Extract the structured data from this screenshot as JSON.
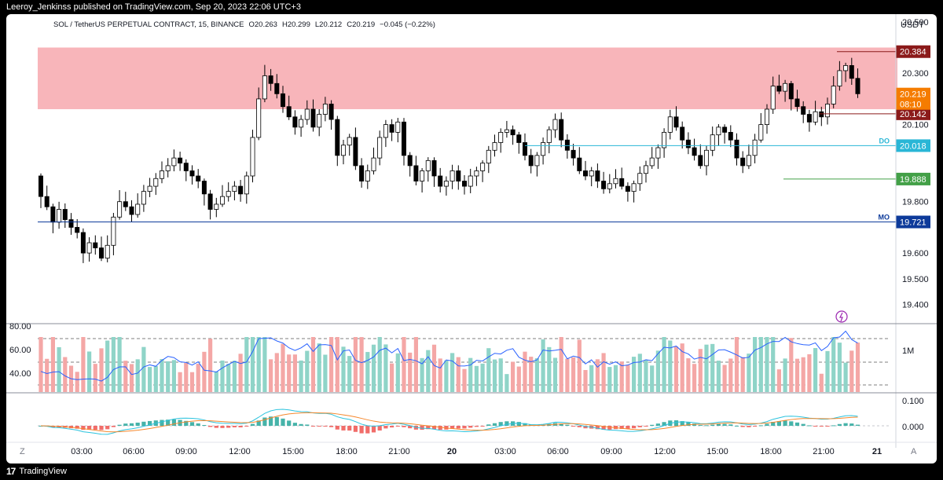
{
  "header": {
    "published": "Leeroy_Jenkinss published on TradingView.com, Sep 20, 2023 22:06 UTC+3"
  },
  "legend": {
    "symbol": "SOL / TetherUS PERPETUAL CONTRACT, 15, BINANCE",
    "o": "O20.263",
    "h": "H20.299",
    "l": "L20.212",
    "c": "C20.219",
    "chg": "−0.045 (−0.22%)"
  },
  "footer": {
    "brand": "TradingView",
    "z_button": "Z",
    "a_button": "A"
  },
  "colors": {
    "up": "#ffffff",
    "down": "#000000",
    "zone": "#f7a8ae",
    "rsi": "#2962ff",
    "macd": "#2bc3de",
    "signal": "#f5872c",
    "hist_up": "#26a69a",
    "hist_down": "#ef5350"
  },
  "icons": [
    "flash-icon",
    "tradingview-logo-icon"
  ],
  "chart_data": {
    "type": "candlestick",
    "title": "SOL / TetherUS PERPETUAL CONTRACT, 15, BINANCE",
    "currency": "USDT",
    "y_ticks": [
      "20.500",
      "20.300",
      "20.100",
      "19.800",
      "19.600",
      "19.500",
      "19.400"
    ],
    "ylim": [
      19.325,
      20.53
    ],
    "x_ticks": [
      "03:00",
      "06:00",
      "09:00",
      "12:00",
      "15:00",
      "18:00",
      "21:00",
      "20",
      "03:00",
      "06:00",
      "09:00",
      "12:00",
      "15:00",
      "18:00",
      "21:00",
      "21"
    ],
    "resistance_zone": [
      20.16,
      20.4
    ],
    "levels": [
      {
        "label": "",
        "value": 20.384,
        "text": "20.384",
        "color": "#8b1a1a"
      },
      {
        "label": "",
        "value": 20.142,
        "text": "20.142",
        "color": "#8b1a1a"
      },
      {
        "label": "DO",
        "value": 20.018,
        "text": "20.018",
        "color": "#29b6d6"
      },
      {
        "label": "",
        "value": 19.888,
        "text": "19.888",
        "color": "#43a047"
      },
      {
        "label": "MO",
        "value": 19.721,
        "text": "19.721",
        "color": "#0d3a9a"
      }
    ],
    "last_price": {
      "value": 20.219,
      "text": "20.219",
      "countdown": "08:10",
      "color": "#f57c00"
    },
    "closes": [
      19.82,
      19.78,
      19.72,
      19.77,
      19.73,
      19.7,
      19.68,
      19.6,
      19.64,
      19.62,
      19.58,
      19.63,
      19.74,
      19.8,
      19.78,
      19.75,
      19.79,
      19.84,
      19.86,
      19.89,
      19.92,
      19.94,
      19.97,
      19.95,
      19.92,
      19.9,
      19.88,
      19.83,
      19.77,
      19.79,
      19.82,
      19.84,
      19.86,
      19.83,
      19.9,
      20.05,
      20.2,
      20.29,
      20.26,
      20.22,
      20.17,
      20.13,
      20.09,
      20.12,
      20.16,
      20.09,
      20.14,
      20.18,
      20.12,
      19.98,
      20.02,
      20.05,
      19.94,
      19.88,
      19.92,
      19.97,
      20.05,
      20.1,
      20.07,
      20.11,
      19.98,
      19.94,
      19.88,
      19.92,
      19.96,
      19.9,
      19.86,
      19.88,
      19.92,
      19.88,
      19.86,
      19.9,
      19.92,
      19.95,
      20.0,
      20.03,
      20.07,
      20.08,
      20.06,
      20.03,
      19.98,
      19.94,
      19.98,
      20.03,
      20.08,
      20.12,
      20.04,
      20.0,
      19.97,
      19.92,
      19.9,
      19.92,
      19.88,
      19.85,
      19.87,
      19.89,
      19.86,
      19.84,
      19.87,
      19.91,
      19.94,
      19.97,
      20.01,
      20.07,
      20.13,
      20.09,
      20.04,
      20.01,
      19.98,
      19.94,
      20.0,
      20.06,
      20.09,
      20.07,
      20.04,
      19.97,
      19.94,
      19.98,
      20.04,
      20.1,
      20.16,
      20.25,
      20.23,
      20.26,
      20.2,
      20.17,
      20.14,
      20.11,
      20.15,
      20.13,
      20.18,
      20.25,
      20.31,
      20.33,
      20.28,
      20.22
    ],
    "volume": {
      "unit_label": "1M",
      "rsi_axis": [
        "80.00",
        "60.00",
        "40.00"
      ]
    },
    "macd": {
      "axis": [
        "0.100",
        "0.000"
      ]
    }
  }
}
